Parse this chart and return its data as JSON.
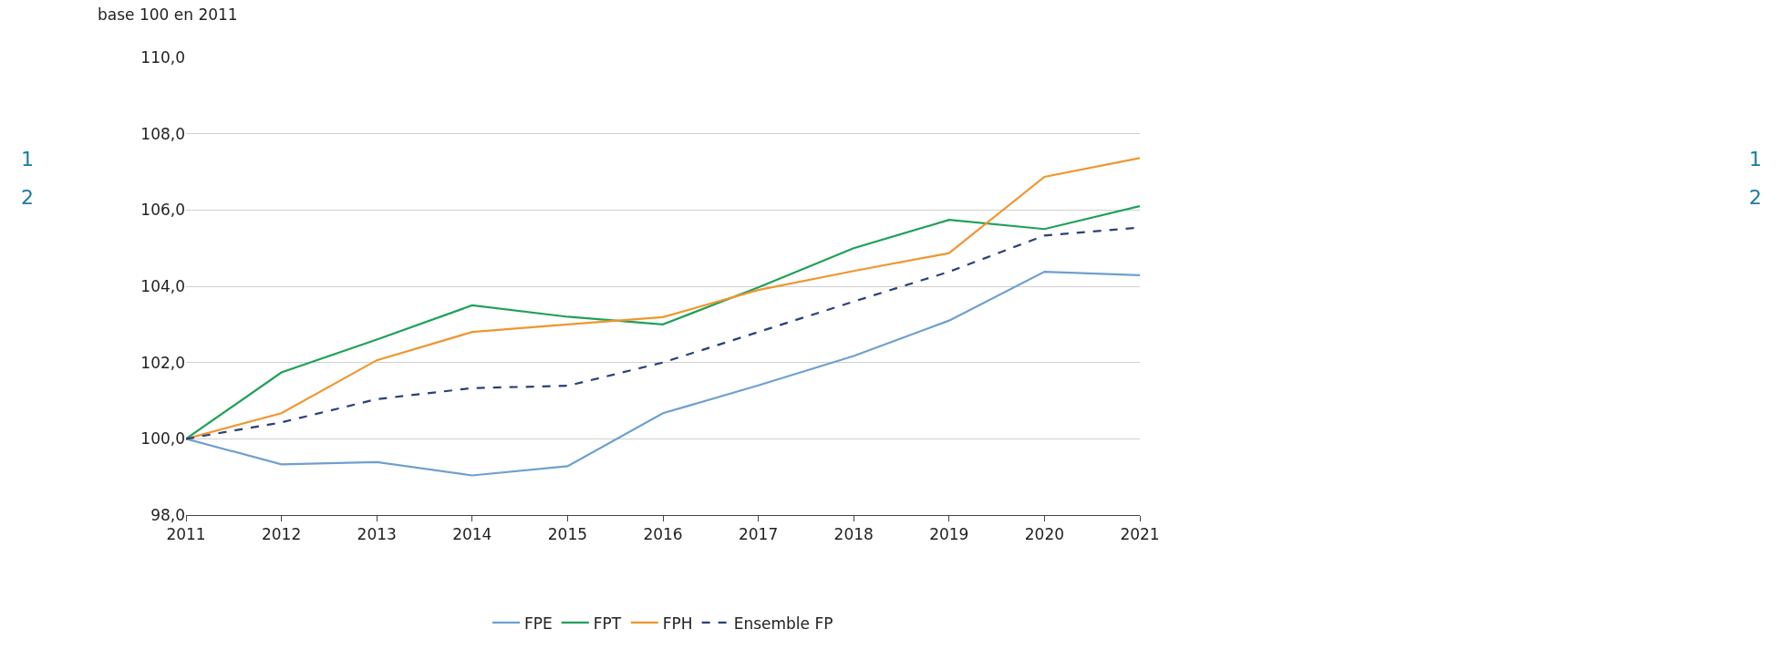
{
  "chart_data": {
    "type": "line",
    "ylabel": "base 100 en 2011",
    "x": [
      2011,
      2012,
      2013,
      2014,
      2015,
      2016,
      2017,
      2018,
      2019,
      2020,
      2021
    ],
    "xlim": [
      2011,
      2021
    ],
    "xticks": [
      2011,
      2012,
      2013,
      2014,
      2015,
      2016,
      2017,
      2018,
      2019,
      2020,
      2021
    ],
    "ylim": [
      98,
      110
    ],
    "yticks": [
      {
        "value": 98,
        "label": "98,0"
      },
      {
        "value": 100,
        "label": "100,0"
      },
      {
        "value": 102,
        "label": "102,0"
      },
      {
        "value": 104,
        "label": "104,0"
      },
      {
        "value": 106,
        "label": "106,0"
      },
      {
        "value": 108,
        "label": "108,0"
      },
      {
        "value": 110,
        "label": "110,0"
      }
    ],
    "grid": "y",
    "legend": "bottom",
    "marker": "none",
    "series": [
      {
        "name": "FPE",
        "color": "#6f9fd0",
        "values": [
          100,
          99.33,
          99.39,
          99.04,
          99.28,
          100.67,
          101.4,
          102.17,
          103.1,
          104.38,
          104.29
        ]
      },
      {
        "name": "FPT",
        "color": "#1fa05a",
        "values": [
          100,
          101.74,
          102.6,
          103.5,
          103.2,
          103.0,
          103.97,
          105.0,
          105.74,
          105.5,
          106.1
        ]
      },
      {
        "name": "FPH",
        "color": "#f0962e",
        "values": [
          100,
          100.67,
          102.06,
          102.8,
          103.0,
          103.19,
          103.9,
          104.4,
          104.87,
          106.87,
          107.36
        ]
      },
      {
        "name": "Ensemble FP",
        "color": "#2b3f7a",
        "line_style": "dashed",
        "values": [
          100,
          100.43,
          101.04,
          101.33,
          101.39,
          102.0,
          102.8,
          103.6,
          104.38,
          105.33,
          105.54
        ]
      }
    ],
    "annotations": [
      "1",
      "2",
      "1",
      "2"
    ]
  }
}
